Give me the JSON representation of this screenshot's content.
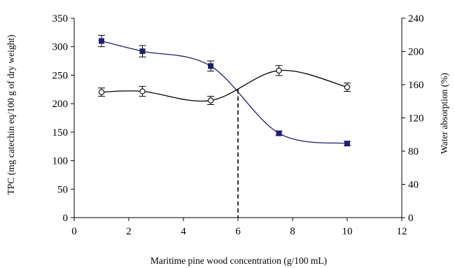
{
  "chart_data": {
    "type": "line",
    "title": "",
    "xlabel": "Maritime pine wood concentration (g/100 mL)",
    "ylabel": "TPC (mg catechin eq/100 g of dry weight)",
    "y2label": "Water absorption (%)",
    "xlim": [
      0,
      12
    ],
    "ylim": [
      0,
      350
    ],
    "y2lim": [
      0,
      240
    ],
    "x_ticks": [
      0,
      2,
      4,
      6,
      8,
      10,
      12
    ],
    "y_ticks": [
      0,
      50,
      100,
      150,
      200,
      250,
      300,
      350
    ],
    "y2_ticks": [
      0,
      40,
      80,
      120,
      160,
      200,
      240
    ],
    "grid": false,
    "legend": "none",
    "series": [
      {
        "axis": "left",
        "marker": "filled-square",
        "color": "#1f1f6e",
        "x": [
          1,
          2.5,
          5,
          7.5,
          10
        ],
        "y": [
          310,
          292,
          266,
          148,
          130
        ],
        "error": [
          10,
          10,
          9,
          4,
          4
        ]
      },
      {
        "axis": "right",
        "marker": "open-circle",
        "color": "#000000",
        "x": [
          1,
          2.5,
          5,
          7.5,
          10
        ],
        "y": [
          151,
          152,
          141,
          177,
          157
        ],
        "error": [
          5,
          6,
          5,
          6,
          5
        ]
      }
    ],
    "annotation": {
      "type": "dashed-vertical-line",
      "x": 6,
      "y": 225
    }
  }
}
